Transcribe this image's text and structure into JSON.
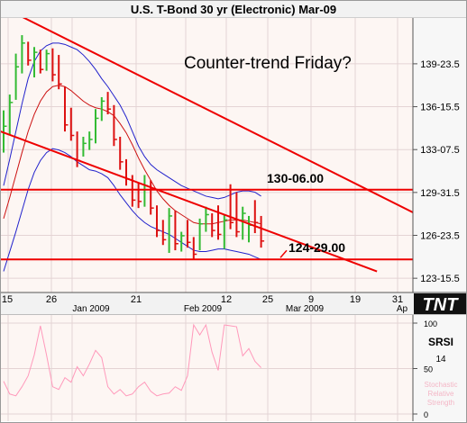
{
  "title": "U.S. T-Bond 30 yr (Electronic) Mar-09",
  "annotation": "Counter-trend Friday?",
  "logo": "TNT",
  "colors": {
    "background": "#fdf6f3",
    "up_bar": "#33bb33",
    "down_bar": "#dd1111",
    "bollinger": "#2222cc",
    "moving_average": "#cc1111",
    "channel": "#ee0000",
    "level_line": "#ee0000",
    "srsi": "#ff99bb",
    "grid": "#e4d4d4"
  },
  "chart_data": [
    {
      "type": "ohlc",
      "title": "U.S. T-Bond 30 yr (Electronic) Mar-09",
      "x_tick_labels": [
        "15",
        "26",
        "21",
        "12",
        "25",
        "9",
        "19",
        "31"
      ],
      "x_month_labels": [
        "Jan 2009",
        "Feb 2009",
        "Mar 2009",
        "Ap"
      ],
      "y_tick_labels": [
        "139-23.5",
        "136-15.5",
        "133-07.5",
        "129-31.5",
        "126-23.5",
        "123-15.5"
      ],
      "y_ticks": [
        139.73,
        136.48,
        133.23,
        129.98,
        126.73,
        123.48
      ],
      "ylim": [
        122.4,
        143.2
      ],
      "levels": [
        {
          "label": "130-06.00",
          "value": 130.19
        },
        {
          "label": "124-29.00",
          "value": 124.91
        }
      ],
      "channel": {
        "upper": [
          {
            "x": 0.3,
            "y": 143.5
          },
          {
            "x": 11.3,
            "y": 125.6
          }
        ],
        "lower": [
          {
            "x": -0.4,
            "y": 135.0
          },
          {
            "x": 8.7,
            "y": 124.0
          }
        ]
      },
      "bars": [
        {
          "high": 136.2,
          "low": 133.0,
          "close": 135.0,
          "up": true
        },
        {
          "high": 137.4,
          "low": 134.3,
          "close": 136.8,
          "up": true
        },
        {
          "high": 140.5,
          "low": 137.0,
          "close": 139.5,
          "up": true
        },
        {
          "high": 141.9,
          "low": 139.0,
          "close": 141.3,
          "up": true
        },
        {
          "high": 141.4,
          "low": 139.6,
          "close": 140.0,
          "up": false
        },
        {
          "high": 141.0,
          "low": 138.7,
          "close": 140.6,
          "up": true
        },
        {
          "high": 140.8,
          "low": 139.0,
          "close": 139.3,
          "up": false
        },
        {
          "high": 140.8,
          "low": 139.2,
          "close": 140.5,
          "up": true
        },
        {
          "high": 140.9,
          "low": 138.4,
          "close": 138.9,
          "up": false
        },
        {
          "high": 140.4,
          "low": 137.8,
          "close": 138.2,
          "up": false
        },
        {
          "high": 138.0,
          "low": 134.6,
          "close": 135.1,
          "up": false
        },
        {
          "high": 136.4,
          "low": 133.9,
          "close": 134.3,
          "up": false
        },
        {
          "high": 134.6,
          "low": 131.9,
          "close": 132.4,
          "up": false
        },
        {
          "high": 134.2,
          "low": 132.7,
          "close": 133.7,
          "up": true
        },
        {
          "high": 134.6,
          "low": 133.2,
          "close": 134.0,
          "up": true
        },
        {
          "high": 136.3,
          "low": 133.7,
          "close": 135.6,
          "up": true
        },
        {
          "high": 137.2,
          "low": 135.4,
          "close": 136.9,
          "up": true
        },
        {
          "high": 137.6,
          "low": 135.9,
          "close": 136.3,
          "up": false
        },
        {
          "high": 136.6,
          "low": 133.5,
          "close": 134.0,
          "up": false
        },
        {
          "high": 134.2,
          "low": 131.7,
          "close": 132.3,
          "up": false
        },
        {
          "high": 132.5,
          "low": 130.5,
          "close": 131.0,
          "up": false
        },
        {
          "high": 131.3,
          "low": 128.9,
          "close": 129.4,
          "up": false
        },
        {
          "high": 130.7,
          "low": 128.8,
          "close": 129.3,
          "up": false
        },
        {
          "high": 131.3,
          "low": 128.9,
          "close": 130.5,
          "up": true
        },
        {
          "high": 130.9,
          "low": 128.3,
          "close": 128.8,
          "up": false
        },
        {
          "high": 129.0,
          "low": 126.6,
          "close": 127.1,
          "up": false
        },
        {
          "high": 127.9,
          "low": 126.0,
          "close": 126.4,
          "up": false
        },
        {
          "high": 128.8,
          "low": 125.4,
          "close": 128.2,
          "up": true
        },
        {
          "high": 128.6,
          "low": 125.6,
          "close": 126.1,
          "up": false
        },
        {
          "high": 127.0,
          "low": 125.5,
          "close": 126.7,
          "up": true
        },
        {
          "high": 127.9,
          "low": 125.8,
          "close": 126.2,
          "up": false
        },
        {
          "high": 126.6,
          "low": 124.9,
          "close": 125.3,
          "up": false
        },
        {
          "high": 128.0,
          "low": 125.6,
          "close": 127.6,
          "up": true
        },
        {
          "high": 128.9,
          "low": 127.0,
          "close": 128.3,
          "up": true
        },
        {
          "high": 128.4,
          "low": 126.6,
          "close": 127.1,
          "up": false
        },
        {
          "high": 129.0,
          "low": 126.4,
          "close": 126.8,
          "up": false
        },
        {
          "high": 128.3,
          "low": 125.7,
          "close": 127.9,
          "up": true
        },
        {
          "high": 130.6,
          "low": 127.2,
          "close": 127.7,
          "up": false
        },
        {
          "high": 130.0,
          "low": 126.6,
          "close": 127.0,
          "up": false
        },
        {
          "high": 128.9,
          "low": 126.4,
          "close": 128.4,
          "up": true
        },
        {
          "high": 128.2,
          "low": 126.2,
          "close": 127.5,
          "up": true
        },
        {
          "high": 129.4,
          "low": 126.9,
          "close": 127.7,
          "up": false
        },
        {
          "high": 128.2,
          "low": 125.8,
          "close": 126.3,
          "up": false
        }
      ],
      "moving_average": [
        128.0,
        129.6,
        131.3,
        133.0,
        134.6,
        135.9,
        136.9,
        137.6,
        138.0,
        138.1,
        138.0,
        137.7,
        137.3,
        136.9,
        136.6,
        136.4,
        136.3,
        136.1,
        135.8,
        135.2,
        134.5,
        133.6,
        132.6,
        131.7,
        130.9,
        130.1,
        129.5,
        129.0,
        128.6,
        128.3,
        128.0,
        127.7,
        127.6,
        127.6,
        127.6,
        127.7,
        127.8,
        127.9,
        127.9,
        127.9,
        127.8,
        127.7,
        127.6
      ],
      "bollinger_upper": [
        130.5,
        132.5,
        134.6,
        136.7,
        138.6,
        139.9,
        140.7,
        141.1,
        141.3,
        141.3,
        141.2,
        141.0,
        140.8,
        140.4,
        139.9,
        139.3,
        138.6,
        138.0,
        137.3,
        136.6,
        135.7,
        134.6,
        133.5,
        132.7,
        132.1,
        131.7,
        131.4,
        131.1,
        130.8,
        130.5,
        130.3,
        130.1,
        129.9,
        129.7,
        129.6,
        129.5,
        129.6,
        129.8,
        130.0,
        130.1,
        130.1,
        130.0,
        129.7
      ],
      "bollinger_lower": [
        124.0,
        125.5,
        127.0,
        128.6,
        130.2,
        131.5,
        132.4,
        133.0,
        133.3,
        133.2,
        133.0,
        132.7,
        132.3,
        132.0,
        131.7,
        131.6,
        131.4,
        131.1,
        130.5,
        129.8,
        129.2,
        128.6,
        128.1,
        127.7,
        127.4,
        127.2,
        127.0,
        126.8,
        126.5,
        126.2,
        125.9,
        125.6,
        125.5,
        125.5,
        125.6,
        125.7,
        125.7,
        125.6,
        125.5,
        125.4,
        125.3,
        125.1,
        124.9
      ]
    },
    {
      "type": "line",
      "name": "SRSI",
      "value_label": "14",
      "axis_note": "Stochastic Relative Strength",
      "y_tick_labels": [
        "100",
        "50",
        "0"
      ],
      "ylim": [
        0,
        100
      ],
      "values": [
        36,
        22,
        20,
        30,
        42,
        65,
        97,
        65,
        30,
        27,
        40,
        35,
        52,
        42,
        55,
        70,
        62,
        30,
        22,
        27,
        20,
        22,
        30,
        35,
        25,
        20,
        22,
        23,
        30,
        26,
        42,
        98,
        87,
        98,
        68,
        48,
        98,
        97,
        96,
        64,
        72,
        58,
        51
      ]
    }
  ]
}
